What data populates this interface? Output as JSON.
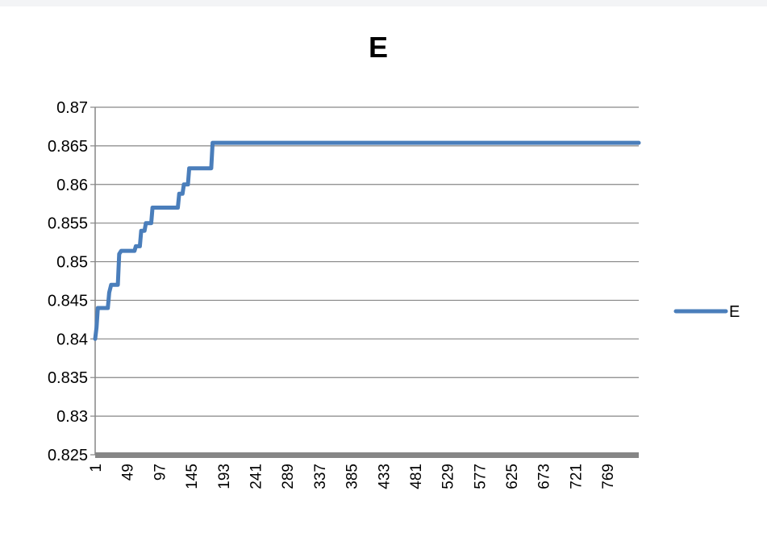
{
  "chart_data": {
    "type": "line",
    "title": "E",
    "xlabel": "",
    "ylabel": "",
    "ylim": [
      0.825,
      0.87
    ],
    "yticks": [
      "0.825",
      "0.83",
      "0.835",
      "0.84",
      "0.845",
      "0.85",
      "0.855",
      "0.86",
      "0.865",
      "0.87"
    ],
    "categories": [
      "1",
      "49",
      "97",
      "145",
      "193",
      "241",
      "289",
      "337",
      "385",
      "433",
      "481",
      "529",
      "577",
      "625",
      "673",
      "721",
      "769"
    ],
    "xrange": [
      1,
      816
    ],
    "grid": true,
    "legend_position": "right",
    "colors": {
      "series": "#4a7ebb",
      "grid": "#868686",
      "axis": "#868686"
    },
    "series": [
      {
        "name": "E",
        "points": [
          [
            1,
            0.84
          ],
          [
            3,
            0.8415
          ],
          [
            5,
            0.844
          ],
          [
            20,
            0.844
          ],
          [
            22,
            0.846
          ],
          [
            25,
            0.847
          ],
          [
            35,
            0.847
          ],
          [
            37,
            0.851
          ],
          [
            40,
            0.8514
          ],
          [
            60,
            0.8514
          ],
          [
            62,
            0.852
          ],
          [
            68,
            0.852
          ],
          [
            70,
            0.854
          ],
          [
            75,
            0.854
          ],
          [
            77,
            0.855
          ],
          [
            85,
            0.855
          ],
          [
            87,
            0.857
          ],
          [
            125,
            0.857
          ],
          [
            127,
            0.8588
          ],
          [
            132,
            0.8588
          ],
          [
            134,
            0.86
          ],
          [
            140,
            0.86
          ],
          [
            142,
            0.8621
          ],
          [
            175,
            0.8621
          ],
          [
            177,
            0.8654
          ],
          [
            816,
            0.8654
          ]
        ]
      }
    ]
  }
}
